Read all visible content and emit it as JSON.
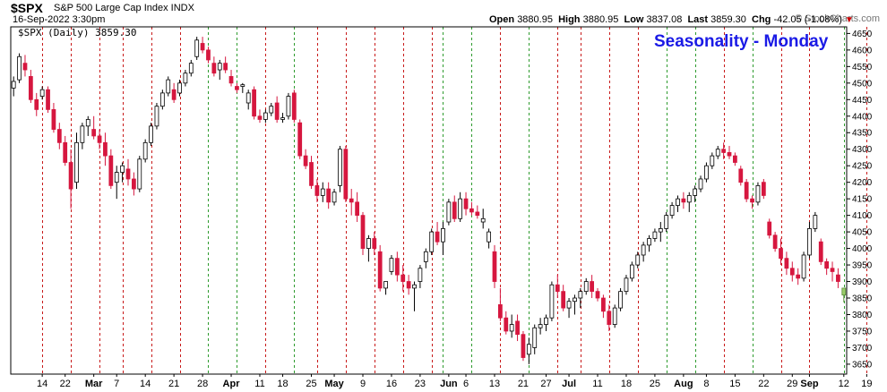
{
  "header": {
    "symbol": "$SPX",
    "name": "S&P 500 Large Cap Index  INDX",
    "date": "16-Sep-2022 3:30pm",
    "brand": "© StockCharts.com",
    "open_label": "Open",
    "open": "3880.95",
    "high_label": "High",
    "high": "3880.95",
    "low_label": "Low",
    "low": "3837.08",
    "last_label": "Last",
    "last": "3859.30",
    "chg_label": "Chg",
    "chg": "-42.05 (-1.08%)",
    "chg_arrow": "▼"
  },
  "legend": "$SPX (Daily) 3859.30",
  "overlay_title": "Seasonality - Monday",
  "colors": {
    "up": "#ffffff",
    "down": "#d6173f",
    "upstroke": "#000000",
    "red_line": "#c81a1a",
    "green_line": "#2e9b2e",
    "last_candle": "#9acd6a"
  },
  "chart_data": {
    "type": "candlestick",
    "ylim": [
      3620,
      4670
    ],
    "yticks": [
      3650,
      3700,
      3750,
      3800,
      3850,
      3900,
      3950,
      4000,
      4050,
      4100,
      4150,
      4200,
      4250,
      4300,
      4350,
      4400,
      4450,
      4500,
      4550,
      4600,
      4650
    ],
    "xtick_labels": [
      {
        "i": 5,
        "label": "14",
        "month": false
      },
      {
        "i": 9,
        "label": "22",
        "month": false
      },
      {
        "i": 14,
        "label": "Mar",
        "month": true
      },
      {
        "i": 18,
        "label": "7",
        "month": false
      },
      {
        "i": 23,
        "label": "14",
        "month": false
      },
      {
        "i": 28,
        "label": "21",
        "month": false
      },
      {
        "i": 33,
        "label": "28",
        "month": false
      },
      {
        "i": 38,
        "label": "Apr",
        "month": true
      },
      {
        "i": 43,
        "label": "11",
        "month": false
      },
      {
        "i": 47,
        "label": "18",
        "month": false
      },
      {
        "i": 52,
        "label": "25",
        "month": false
      },
      {
        "i": 56,
        "label": "May",
        "month": true
      },
      {
        "i": 61,
        "label": "9",
        "month": false
      },
      {
        "i": 66,
        "label": "16",
        "month": false
      },
      {
        "i": 71,
        "label": "23",
        "month": false
      },
      {
        "i": 76,
        "label": "Jun",
        "month": true
      },
      {
        "i": 79,
        "label": "6",
        "month": false
      },
      {
        "i": 84,
        "label": "13",
        "month": false
      },
      {
        "i": 89,
        "label": "21",
        "month": false
      },
      {
        "i": 93,
        "label": "27",
        "month": false
      },
      {
        "i": 97,
        "label": "Jul",
        "month": true
      },
      {
        "i": 102,
        "label": "11",
        "month": false
      },
      {
        "i": 107,
        "label": "18",
        "month": false
      },
      {
        "i": 112,
        "label": "25",
        "month": false
      },
      {
        "i": 117,
        "label": "Aug",
        "month": true
      },
      {
        "i": 121,
        "label": "8",
        "month": false
      },
      {
        "i": 126,
        "label": "15",
        "month": false
      },
      {
        "i": 131,
        "label": "22",
        "month": false
      },
      {
        "i": 136,
        "label": "29",
        "month": false
      },
      {
        "i": 139,
        "label": "Sep",
        "month": true
      },
      {
        "i": 145,
        "label": "12",
        "month": false
      },
      {
        "i": 149,
        "label": "19",
        "month": false
      }
    ],
    "monday_lines": [
      {
        "i": 5,
        "color": "red"
      },
      {
        "i": 10,
        "color": "red"
      },
      {
        "i": 15,
        "color": "red"
      },
      {
        "i": 19,
        "color": "red"
      },
      {
        "i": 24,
        "color": "red"
      },
      {
        "i": 29,
        "color": "red"
      },
      {
        "i": 34,
        "color": "green"
      },
      {
        "i": 39,
        "color": "green"
      },
      {
        "i": 44,
        "color": "red"
      },
      {
        "i": 49,
        "color": "green"
      },
      {
        "i": 53,
        "color": "red"
      },
      {
        "i": 58,
        "color": "red"
      },
      {
        "i": 63,
        "color": "red"
      },
      {
        "i": 68,
        "color": "red"
      },
      {
        "i": 73,
        "color": "red"
      },
      {
        "i": 75,
        "color": "green"
      },
      {
        "i": 80,
        "color": "green"
      },
      {
        "i": 85,
        "color": "red"
      },
      {
        "i": 90,
        "color": "green"
      },
      {
        "i": 95,
        "color": "red"
      },
      {
        "i": 99,
        "color": "red"
      },
      {
        "i": 104,
        "color": "red"
      },
      {
        "i": 109,
        "color": "red"
      },
      {
        "i": 114,
        "color": "green"
      },
      {
        "i": 119,
        "color": "green"
      },
      {
        "i": 124,
        "color": "red"
      },
      {
        "i": 129,
        "color": "green"
      },
      {
        "i": 134,
        "color": "red"
      },
      {
        "i": 139,
        "color": "red"
      },
      {
        "i": 145,
        "color": "green"
      },
      {
        "i": 149,
        "color": "red"
      }
    ],
    "candles": [
      [
        4485,
        4520,
        4460,
        4505
      ],
      [
        4510,
        4590,
        4500,
        4580
      ],
      [
        4560,
        4585,
        4520,
        4540
      ],
      [
        4520,
        4540,
        4440,
        4450
      ],
      [
        4450,
        4470,
        4400,
        4420
      ],
      [
        4460,
        4490,
        4450,
        4480
      ],
      [
        4480,
        4490,
        4410,
        4420
      ],
      [
        4420,
        4440,
        4350,
        4360
      ],
      [
        4360,
        4380,
        4300,
        4320
      ],
      [
        4320,
        4340,
        4250,
        4260
      ],
      [
        4260,
        4300,
        4120,
        4180
      ],
      [
        4200,
        4350,
        4180,
        4320
      ],
      [
        4320,
        4380,
        4300,
        4370
      ],
      [
        4370,
        4400,
        4340,
        4390
      ],
      [
        4360,
        4400,
        4330,
        4340
      ],
      [
        4340,
        4360,
        4300,
        4320
      ],
      [
        4320,
        4350,
        4250,
        4280
      ],
      [
        4280,
        4300,
        4180,
        4190
      ],
      [
        4200,
        4250,
        4150,
        4230
      ],
      [
        4230,
        4260,
        4200,
        4250
      ],
      [
        4240,
        4270,
        4190,
        4210
      ],
      [
        4210,
        4230,
        4160,
        4180
      ],
      [
        4180,
        4280,
        4170,
        4270
      ],
      [
        4270,
        4330,
        4260,
        4320
      ],
      [
        4320,
        4380,
        4310,
        4370
      ],
      [
        4370,
        4440,
        4360,
        4430
      ],
      [
        4430,
        4480,
        4420,
        4470
      ],
      [
        4470,
        4520,
        4460,
        4510
      ],
      [
        4480,
        4500,
        4440,
        4450
      ],
      [
        4470,
        4510,
        4460,
        4500
      ],
      [
        4500,
        4540,
        4490,
        4530
      ],
      [
        4530,
        4570,
        4520,
        4560
      ],
      [
        4580,
        4640,
        4570,
        4630
      ],
      [
        4620,
        4640,
        4590,
        4600
      ],
      [
        4600,
        4610,
        4560,
        4570
      ],
      [
        4560,
        4580,
        4520,
        4530
      ],
      [
        4540,
        4570,
        4510,
        4560
      ],
      [
        4560,
        4580,
        4530,
        4540
      ],
      [
        4520,
        4540,
        4490,
        4500
      ],
      [
        4490,
        4500,
        4470,
        4480
      ],
      [
        4490,
        4500,
        4470,
        4495
      ],
      [
        4440,
        4480,
        4420,
        4470
      ],
      [
        4480,
        4490,
        4390,
        4400
      ],
      [
        4400,
        4420,
        4380,
        4390
      ],
      [
        4390,
        4420,
        4380,
        4410
      ],
      [
        4410,
        4440,
        4400,
        4430
      ],
      [
        4440,
        4460,
        4380,
        4390
      ],
      [
        4390,
        4410,
        4380,
        4395
      ],
      [
        4400,
        4470,
        4390,
        4460
      ],
      [
        4470,
        4480,
        4380,
        4390
      ],
      [
        4380,
        4390,
        4270,
        4280
      ],
      [
        4280,
        4300,
        4240,
        4250
      ],
      [
        4260,
        4280,
        4180,
        4190
      ],
      [
        4190,
        4210,
        4140,
        4160
      ],
      [
        4160,
        4200,
        4140,
        4180
      ],
      [
        4180,
        4200,
        4120,
        4140
      ],
      [
        4140,
        4180,
        4130,
        4170
      ],
      [
        4190,
        4310,
        4170,
        4300
      ],
      [
        4300,
        4310,
        4140,
        4150
      ],
      [
        4150,
        4180,
        4100,
        4140
      ],
      [
        4140,
        4170,
        4080,
        4100
      ],
      [
        4100,
        4110,
        3980,
        4000
      ],
      [
        4000,
        4040,
        3960,
        4030
      ],
      [
        4030,
        4050,
        3980,
        4000
      ],
      [
        3990,
        4010,
        3870,
        3880
      ],
      [
        3880,
        3900,
        3860,
        3900
      ],
      [
        3930,
        3980,
        3920,
        3970
      ],
      [
        3970,
        3990,
        3900,
        3920
      ],
      [
        3920,
        3950,
        3870,
        3900
      ],
      [
        3900,
        3920,
        3860,
        3880
      ],
      [
        3880,
        3900,
        3810,
        3890
      ],
      [
        3900,
        3950,
        3880,
        3940
      ],
      [
        3960,
        4000,
        3940,
        3990
      ],
      [
        3990,
        4060,
        3980,
        4050
      ],
      [
        4050,
        4080,
        4010,
        4020
      ],
      [
        4020,
        4080,
        3980,
        4060
      ],
      [
        4080,
        4150,
        4070,
        4140
      ],
      [
        4140,
        4160,
        4080,
        4090
      ],
      [
        4090,
        4170,
        4080,
        4150
      ],
      [
        4150,
        4170,
        4100,
        4120
      ],
      [
        4120,
        4140,
        4100,
        4110
      ],
      [
        4110,
        4130,
        4090,
        4100
      ],
      [
        4080,
        4120,
        4060,
        4090
      ],
      [
        4020,
        4060,
        4000,
        4050
      ],
      [
        3990,
        4010,
        3880,
        3900
      ],
      [
        3830,
        3880,
        3780,
        3790
      ],
      [
        3790,
        3810,
        3740,
        3750
      ],
      [
        3750,
        3800,
        3730,
        3770
      ],
      [
        3780,
        3800,
        3720,
        3740
      ],
      [
        3740,
        3750,
        3660,
        3670
      ],
      [
        3680,
        3730,
        3650,
        3710
      ],
      [
        3700,
        3770,
        3680,
        3760
      ],
      [
        3760,
        3790,
        3740,
        3770
      ],
      [
        3770,
        3800,
        3750,
        3790
      ],
      [
        3790,
        3900,
        3780,
        3890
      ],
      [
        3890,
        3920,
        3850,
        3870
      ],
      [
        3870,
        3890,
        3810,
        3820
      ],
      [
        3820,
        3850,
        3790,
        3840
      ],
      [
        3840,
        3860,
        3800,
        3850
      ],
      [
        3850,
        3880,
        3820,
        3870
      ],
      [
        3870,
        3910,
        3860,
        3900
      ],
      [
        3900,
        3920,
        3850,
        3870
      ],
      [
        3870,
        3880,
        3840,
        3850
      ],
      [
        3850,
        3860,
        3790,
        3810
      ],
      [
        3810,
        3830,
        3750,
        3770
      ],
      [
        3770,
        3830,
        3760,
        3820
      ],
      [
        3820,
        3880,
        3810,
        3870
      ],
      [
        3870,
        3920,
        3860,
        3910
      ],
      [
        3910,
        3960,
        3900,
        3950
      ],
      [
        3950,
        3990,
        3940,
        3980
      ],
      [
        3980,
        4020,
        3960,
        4010
      ],
      [
        4010,
        4040,
        3990,
        4030
      ],
      [
        4030,
        4060,
        4020,
        4050
      ],
      [
        4050,
        4080,
        4020,
        4060
      ],
      [
        4060,
        4110,
        4050,
        4100
      ],
      [
        4100,
        4140,
        4090,
        4130
      ],
      [
        4130,
        4160,
        4110,
        4150
      ],
      [
        4150,
        4170,
        4120,
        4140
      ],
      [
        4140,
        4170,
        4110,
        4160
      ],
      [
        4160,
        4190,
        4140,
        4180
      ],
      [
        4180,
        4220,
        4170,
        4210
      ],
      [
        4210,
        4260,
        4200,
        4250
      ],
      [
        4250,
        4290,
        4240,
        4280
      ],
      [
        4280,
        4310,
        4270,
        4300
      ],
      [
        4300,
        4320,
        4270,
        4290
      ],
      [
        4290,
        4310,
        4270,
        4280
      ],
      [
        4280,
        4290,
        4250,
        4260
      ],
      [
        4240,
        4250,
        4190,
        4200
      ],
      [
        4200,
        4210,
        4140,
        4150
      ],
      [
        4150,
        4160,
        4120,
        4140
      ],
      [
        4140,
        4200,
        4130,
        4190
      ],
      [
        4200,
        4210,
        4150,
        4160
      ],
      [
        4080,
        4090,
        4030,
        4040
      ],
      [
        4040,
        4050,
        3990,
        4000
      ],
      [
        4000,
        4030,
        3950,
        3970
      ],
      [
        3970,
        3990,
        3920,
        3940
      ],
      [
        3940,
        3960,
        3900,
        3920
      ],
      [
        3920,
        3940,
        3890,
        3910
      ],
      [
        3910,
        3990,
        3900,
        3980
      ],
      [
        3980,
        4080,
        3970,
        4060
      ],
      [
        4060,
        4110,
        4050,
        4100
      ],
      [
        4020,
        4030,
        3950,
        3960
      ],
      [
        3960,
        3970,
        3920,
        3940
      ],
      [
        3940,
        3960,
        3900,
        3930
      ],
      [
        3920,
        3940,
        3880,
        3900
      ],
      [
        3880,
        3880,
        3837,
        3859
      ]
    ]
  }
}
